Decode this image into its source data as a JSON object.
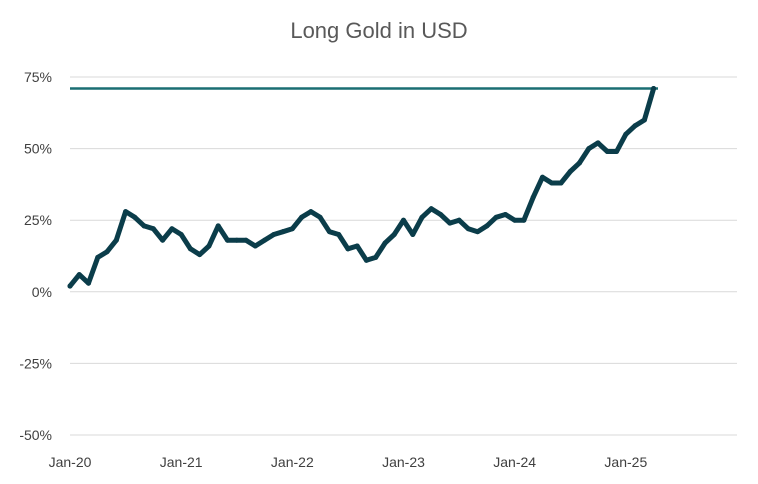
{
  "chart_data": {
    "type": "line",
    "title": "Long Gold in USD",
    "xlabel": "",
    "ylabel": "",
    "ylim": [
      -0.5,
      0.75
    ],
    "y_ticks": [
      {
        "value": 0.75,
        "label": "75%"
      },
      {
        "value": 0.5,
        "label": "50%"
      },
      {
        "value": 0.25,
        "label": "25%"
      },
      {
        "value": 0.0,
        "label": "0%"
      },
      {
        "value": -0.25,
        "label": "-25%"
      },
      {
        "value": -0.5,
        "label": "-50%"
      }
    ],
    "x_ticks": [
      "Jan-20",
      "Jan-21",
      "Jan-22",
      "Jan-23",
      "Jan-24",
      "Jan-25"
    ],
    "x_range": [
      "2020-01",
      "2026-01"
    ],
    "grid": "horizontal",
    "colors": {
      "series": "#0b3d4a",
      "reference": "#1a6e73",
      "grid": "#d9d9d9",
      "text": "#404040"
    },
    "series": [
      {
        "x": [
          "2020-01",
          "2020-02",
          "2020-03",
          "2020-04",
          "2020-05",
          "2020-06",
          "2020-07",
          "2020-08",
          "2020-09",
          "2020-10",
          "2020-11",
          "2020-12",
          "2021-01",
          "2021-02",
          "2021-03",
          "2021-04",
          "2021-05",
          "2021-06",
          "2021-07",
          "2021-08",
          "2021-09",
          "2021-10",
          "2021-11",
          "2021-12",
          "2022-01",
          "2022-02",
          "2022-03",
          "2022-04",
          "2022-05",
          "2022-06",
          "2022-07",
          "2022-08",
          "2022-09",
          "2022-10",
          "2022-11",
          "2022-12",
          "2023-01",
          "2023-02",
          "2023-03",
          "2023-04",
          "2023-05",
          "2023-06",
          "2023-07",
          "2023-08",
          "2023-09",
          "2023-10",
          "2023-11",
          "2023-12",
          "2024-01",
          "2024-02",
          "2024-03",
          "2024-04",
          "2024-05",
          "2024-06",
          "2024-07",
          "2024-08",
          "2024-09",
          "2024-10",
          "2024-11",
          "2024-12",
          "2025-01",
          "2025-02",
          "2025-03",
          "2025-04"
        ],
        "values": [
          0.02,
          0.06,
          0.03,
          0.12,
          0.14,
          0.18,
          0.28,
          0.26,
          0.23,
          0.22,
          0.18,
          0.22,
          0.2,
          0.15,
          0.13,
          0.16,
          0.23,
          0.18,
          0.18,
          0.18,
          0.16,
          0.18,
          0.2,
          0.21,
          0.22,
          0.26,
          0.28,
          0.26,
          0.21,
          0.2,
          0.15,
          0.16,
          0.11,
          0.12,
          0.17,
          0.2,
          0.25,
          0.2,
          0.26,
          0.29,
          0.27,
          0.24,
          0.25,
          0.22,
          0.21,
          0.23,
          0.26,
          0.27,
          0.25,
          0.25,
          0.33,
          0.4,
          0.38,
          0.38,
          0.42,
          0.45,
          0.5,
          0.52,
          0.49,
          0.49,
          0.55,
          0.58,
          0.6,
          0.71
        ]
      }
    ],
    "reference_line": {
      "value": 0.71
    }
  }
}
